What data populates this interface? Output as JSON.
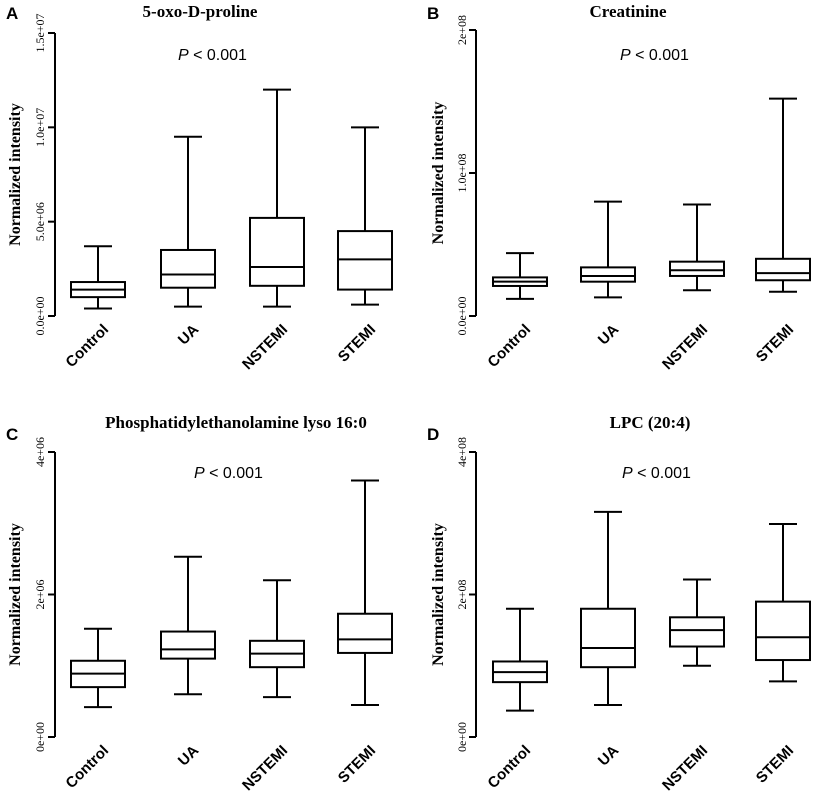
{
  "chart_data": [
    {
      "type": "boxplot",
      "panel_label": "A",
      "title": "5-oxo-D-proline",
      "ylabel": "Normalized intensity",
      "xlabel": "",
      "annotation": {
        "prefix": "P",
        "suffix": " < 0.001"
      },
      "ylim": [
        0,
        15000000
      ],
      "y_ticks": [
        0,
        5000000,
        10000000,
        15000000
      ],
      "y_tick_labels": [
        "0.0e+00",
        "5.0e+06",
        "1.0e+07",
        "1.5e+07"
      ],
      "categories": [
        "Control",
        "UA",
        "NSTEMI",
        "STEMI"
      ],
      "boxes": [
        {
          "min": 400000,
          "q1": 1000000,
          "median": 1400000,
          "q3": 1800000,
          "max": 3700000
        },
        {
          "min": 500000,
          "q1": 1500000,
          "median": 2200000,
          "q3": 3500000,
          "max": 9500000
        },
        {
          "min": 500000,
          "q1": 1600000,
          "median": 2600000,
          "q3": 5200000,
          "max": 12000000
        },
        {
          "min": 600000,
          "q1": 1400000,
          "median": 3000000,
          "q3": 4500000,
          "max": 10000000
        }
      ]
    },
    {
      "type": "boxplot",
      "panel_label": "B",
      "title": "Creatinine",
      "ylabel": "Normalized intensity",
      "xlabel": "",
      "annotation": {
        "prefix": "P",
        "suffix": " < 0.001"
      },
      "ylim": [
        0,
        200000000
      ],
      "y_ticks": [
        0,
        100000000,
        200000000
      ],
      "y_tick_labels": [
        "0.0e+00",
        "1.0e+08",
        "2e+08"
      ],
      "categories": [
        "Control",
        "UA",
        "NSTEMI",
        "STEMI"
      ],
      "boxes": [
        {
          "min": 12000000,
          "q1": 21000000,
          "median": 24000000,
          "q3": 27000000,
          "max": 44000000
        },
        {
          "min": 13000000,
          "q1": 24000000,
          "median": 28000000,
          "q3": 34000000,
          "max": 80000000
        },
        {
          "min": 18000000,
          "q1": 28000000,
          "median": 32000000,
          "q3": 38000000,
          "max": 78000000
        },
        {
          "min": 17000000,
          "q1": 25000000,
          "median": 30000000,
          "q3": 40000000,
          "max": 152000000
        }
      ]
    },
    {
      "type": "boxplot",
      "panel_label": "C",
      "title": "Phosphatidylethanolamine lyso 16:0",
      "ylabel": "Normalized intensity",
      "xlabel": "",
      "annotation": {
        "prefix": "P",
        "suffix": " < 0.001"
      },
      "ylim": [
        0,
        4000000
      ],
      "y_ticks": [
        0,
        2000000,
        4000000
      ],
      "y_tick_labels": [
        "0e+00",
        "2e+06",
        "4e+06"
      ],
      "categories": [
        "Control",
        "UA",
        "NSTEMI",
        "STEMI"
      ],
      "boxes": [
        {
          "min": 420000,
          "q1": 700000,
          "median": 890000,
          "q3": 1070000,
          "max": 1520000
        },
        {
          "min": 600000,
          "q1": 1100000,
          "median": 1230000,
          "q3": 1480000,
          "max": 2530000
        },
        {
          "min": 560000,
          "q1": 980000,
          "median": 1170000,
          "q3": 1350000,
          "max": 2200000
        },
        {
          "min": 450000,
          "q1": 1180000,
          "median": 1370000,
          "q3": 1730000,
          "max": 3600000
        }
      ]
    },
    {
      "type": "boxplot",
      "panel_label": "D",
      "title": "LPC (20:4)",
      "ylabel": "Normalized intensity",
      "xlabel": "",
      "annotation": {
        "prefix": "P",
        "suffix": " < 0.001"
      },
      "ylim": [
        0,
        400000000
      ],
      "y_ticks": [
        0,
        200000000,
        400000000
      ],
      "y_tick_labels": [
        "0e+00",
        "2e+08",
        "4e+08"
      ],
      "categories": [
        "Control",
        "UA",
        "NSTEMI",
        "STEMI"
      ],
      "boxes": [
        {
          "min": 37000000,
          "q1": 77000000,
          "median": 91000000,
          "q3": 106000000,
          "max": 180000000
        },
        {
          "min": 45000000,
          "q1": 98000000,
          "median": 125000000,
          "q3": 180000000,
          "max": 316000000
        },
        {
          "min": 100000000,
          "q1": 127000000,
          "median": 150000000,
          "q3": 168000000,
          "max": 221000000
        },
        {
          "min": 78000000,
          "q1": 108000000,
          "median": 140000000,
          "q3": 190000000,
          "max": 299000000
        }
      ]
    }
  ]
}
